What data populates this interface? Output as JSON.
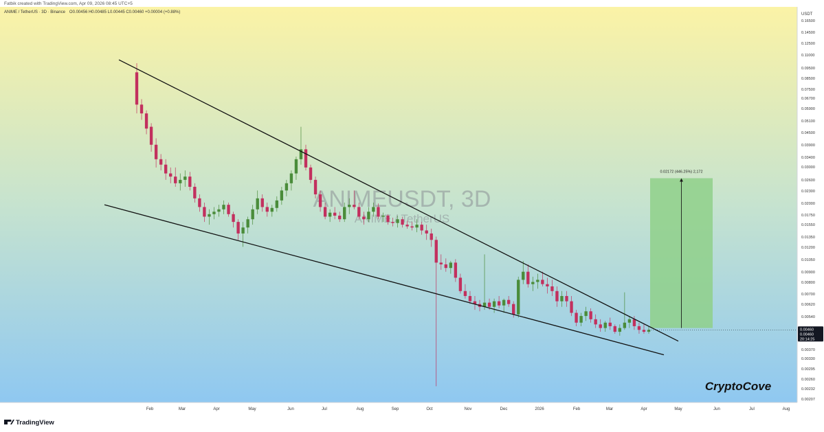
{
  "header": {
    "credit": "Fatbik created with TradingView.com, Apr 09, 2026 08:45 UTC+5",
    "symbol_line": "ANIME / TetherUS · 3D · Binance",
    "ohlc": "O0.00456 H0.00485 L0.00445 C0.00460 +0.00004 (+0.88%)"
  },
  "watermark": {
    "symbol": "ANIMEUSDT, 3D",
    "pair": "ANIME / TetherUS"
  },
  "footer": {
    "brand": "TradingView",
    "signature": "CryptoCove"
  },
  "colors": {
    "bg_top": "#fbf3a6",
    "bg_bottom": "#8fc8f1",
    "up": "#4a8c3a",
    "down": "#c2305e",
    "trendline": "#111111",
    "target_box": "#8fd08a",
    "price_tag": "#131722"
  },
  "chart_data": {
    "type": "candlestick",
    "title": "ANIMEUSDT, 3D",
    "y_scale": "log",
    "y_unit": "USDT",
    "y_ticks": [
      "0.16500",
      "0.14500",
      "0.12500",
      "0.11000",
      "0.09500",
      "0.08500",
      "0.07500",
      "0.06700",
      "0.05900",
      "0.05100",
      "0.04500",
      "0.03900",
      "0.03400",
      "0.03000",
      "0.02600",
      "0.02300",
      "0.02000",
      "0.01750",
      "0.01550",
      "0.01350",
      "0.01200",
      "0.01050",
      "0.00900",
      "0.00800",
      "0.00700",
      "0.00620",
      "0.00540",
      "0.00460",
      "0.00420",
      "0.00370",
      "0.00330",
      "0.00295",
      "0.00260",
      "0.00232",
      "0.00207"
    ],
    "y_tick_positions": [
      30,
      47,
      63,
      80,
      99,
      114,
      130,
      143,
      158,
      176,
      193,
      211,
      229,
      243,
      262,
      278,
      296,
      313,
      327,
      345,
      360,
      378,
      396,
      411,
      428,
      443,
      461,
      478,
      493,
      509,
      522,
      537,
      552,
      566,
      581
    ],
    "x_labels": [
      "Feb",
      "Mar",
      "Apr",
      "May",
      "Jun",
      "Jul",
      "Aug",
      "Sep",
      "Oct",
      "Nov",
      "Dec",
      "2026",
      "Feb",
      "Mar",
      "Apr",
      "May",
      "Jun",
      "Jul",
      "Aug"
    ],
    "x_label_positions": [
      218,
      265,
      315,
      367,
      423,
      472,
      524,
      575,
      625,
      681,
      733,
      785,
      839,
      887,
      937,
      987,
      1043,
      1094,
      1144
    ],
    "current_price": "0.00460",
    "current_price_secondary": "0.00460",
    "countdown": "20:14:25",
    "projection_label": "0.02172 (446.25%) 2,172",
    "projection": {
      "from_price": 0.0047,
      "to_price": 0.0265,
      "x_start": 946,
      "x_end": 1037
    },
    "candles": [
      [
        0.09,
        0.1,
        0.056,
        0.062
      ],
      [
        0.062,
        0.066,
        0.052,
        0.056
      ],
      [
        0.056,
        0.058,
        0.044,
        0.047
      ],
      [
        0.048,
        0.05,
        0.036,
        0.039
      ],
      [
        0.039,
        0.042,
        0.03,
        0.033
      ],
      [
        0.033,
        0.035,
        0.029,
        0.031
      ],
      [
        0.031,
        0.033,
        0.026,
        0.028
      ],
      [
        0.028,
        0.03,
        0.025,
        0.027
      ],
      [
        0.027,
        0.03,
        0.024,
        0.025
      ],
      [
        0.025,
        0.028,
        0.023,
        0.026
      ],
      [
        0.026,
        0.029,
        0.024,
        0.027
      ],
      [
        0.027,
        0.0285,
        0.023,
        0.024
      ],
      [
        0.024,
        0.025,
        0.02,
        0.021
      ],
      [
        0.021,
        0.022,
        0.018,
        0.019
      ],
      [
        0.019,
        0.02,
        0.016,
        0.017
      ],
      [
        0.017,
        0.0185,
        0.0155,
        0.0175
      ],
      [
        0.0175,
        0.019,
        0.0165,
        0.018
      ],
      [
        0.018,
        0.0195,
        0.017,
        0.0185
      ],
      [
        0.0185,
        0.0205,
        0.0175,
        0.0195
      ],
      [
        0.0195,
        0.02,
        0.017,
        0.0175
      ],
      [
        0.0175,
        0.018,
        0.015,
        0.016
      ],
      [
        0.016,
        0.0165,
        0.013,
        0.014
      ],
      [
        0.014,
        0.016,
        0.012,
        0.015
      ],
      [
        0.015,
        0.017,
        0.014,
        0.0165
      ],
      [
        0.0165,
        0.0195,
        0.0155,
        0.0185
      ],
      [
        0.0185,
        0.023,
        0.0175,
        0.021
      ],
      [
        0.021,
        0.022,
        0.018,
        0.019
      ],
      [
        0.019,
        0.02,
        0.017,
        0.018
      ],
      [
        0.018,
        0.0195,
        0.017,
        0.0188
      ],
      [
        0.0188,
        0.0215,
        0.018,
        0.0205
      ],
      [
        0.0205,
        0.024,
        0.0195,
        0.023
      ],
      [
        0.023,
        0.026,
        0.0215,
        0.025
      ],
      [
        0.025,
        0.029,
        0.023,
        0.028
      ],
      [
        0.028,
        0.034,
        0.026,
        0.033
      ],
      [
        0.033,
        0.048,
        0.031,
        0.037
      ],
      [
        0.037,
        0.039,
        0.029,
        0.03
      ],
      [
        0.03,
        0.031,
        0.025,
        0.026
      ],
      [
        0.026,
        0.027,
        0.021,
        0.022
      ],
      [
        0.022,
        0.023,
        0.018,
        0.019
      ],
      [
        0.019,
        0.02,
        0.0165,
        0.017
      ],
      [
        0.017,
        0.0185,
        0.016,
        0.0178
      ],
      [
        0.0178,
        0.019,
        0.0165,
        0.0172
      ],
      [
        0.0172,
        0.018,
        0.016,
        0.0165
      ],
      [
        0.0165,
        0.02,
        0.016,
        0.019
      ],
      [
        0.019,
        0.021,
        0.0175,
        0.0195
      ],
      [
        0.0195,
        0.023,
        0.0185,
        0.019
      ],
      [
        0.019,
        0.02,
        0.0165,
        0.017
      ],
      [
        0.017,
        0.018,
        0.0155,
        0.0165
      ],
      [
        0.0165,
        0.019,
        0.016,
        0.018
      ],
      [
        0.018,
        0.02,
        0.017,
        0.019
      ],
      [
        0.019,
        0.0198,
        0.0165,
        0.017
      ],
      [
        0.017,
        0.0178,
        0.016,
        0.0172
      ],
      [
        0.0172,
        0.0175,
        0.0155,
        0.016
      ],
      [
        0.016,
        0.0168,
        0.0152,
        0.0158
      ],
      [
        0.0158,
        0.0172,
        0.015,
        0.0165
      ],
      [
        0.0165,
        0.017,
        0.015,
        0.0155
      ],
      [
        0.0155,
        0.0162,
        0.0148,
        0.0152
      ],
      [
        0.0152,
        0.016,
        0.0145,
        0.015
      ],
      [
        0.015,
        0.0165,
        0.0142,
        0.0155
      ],
      [
        0.0155,
        0.016,
        0.0138,
        0.0145
      ],
      [
        0.0145,
        0.0155,
        0.013,
        0.014
      ],
      [
        0.014,
        0.0148,
        0.012,
        0.013
      ],
      [
        0.013,
        0.0135,
        0.0024,
        0.01
      ],
      [
        0.01,
        0.011,
        0.0092,
        0.0098
      ],
      [
        0.0098,
        0.0105,
        0.009,
        0.0094
      ],
      [
        0.0094,
        0.0102,
        0.0088,
        0.01
      ],
      [
        0.01,
        0.0104,
        0.008,
        0.0084
      ],
      [
        0.0084,
        0.0088,
        0.007,
        0.0072
      ],
      [
        0.0072,
        0.0078,
        0.0066,
        0.0068
      ],
      [
        0.0068,
        0.0072,
        0.0062,
        0.0064
      ],
      [
        0.0064,
        0.0068,
        0.0058,
        0.0062
      ],
      [
        0.0062,
        0.0065,
        0.0057,
        0.006
      ],
      [
        0.006,
        0.011,
        0.0058,
        0.0063
      ],
      [
        0.0063,
        0.0066,
        0.0058,
        0.006
      ],
      [
        0.006,
        0.0066,
        0.0056,
        0.0064
      ],
      [
        0.0064,
        0.0068,
        0.0059,
        0.0061
      ],
      [
        0.0061,
        0.0066,
        0.0056,
        0.0065
      ],
      [
        0.0065,
        0.0068,
        0.006,
        0.0062
      ],
      [
        0.0062,
        0.0064,
        0.0053,
        0.0055
      ],
      [
        0.0055,
        0.0085,
        0.0053,
        0.0082
      ],
      [
        0.0082,
        0.0102,
        0.0078,
        0.009
      ],
      [
        0.009,
        0.0098,
        0.0075,
        0.0078
      ],
      [
        0.0078,
        0.0085,
        0.0072,
        0.008
      ],
      [
        0.008,
        0.0088,
        0.0074,
        0.0082
      ],
      [
        0.0082,
        0.009,
        0.0076,
        0.0078
      ],
      [
        0.0078,
        0.0084,
        0.007,
        0.0076
      ],
      [
        0.0076,
        0.0082,
        0.0068,
        0.0072
      ],
      [
        0.0072,
        0.0076,
        0.006,
        0.0064
      ],
      [
        0.0064,
        0.0072,
        0.006,
        0.0068
      ],
      [
        0.0068,
        0.0072,
        0.006,
        0.0064
      ],
      [
        0.0064,
        0.0068,
        0.0054,
        0.0056
      ],
      [
        0.0056,
        0.0058,
        0.0048,
        0.005
      ],
      [
        0.005,
        0.0056,
        0.0048,
        0.0054
      ],
      [
        0.0054,
        0.006,
        0.0051,
        0.0057
      ],
      [
        0.0057,
        0.0059,
        0.005,
        0.0052
      ],
      [
        0.0052,
        0.0055,
        0.0047,
        0.0049
      ],
      [
        0.0049,
        0.0052,
        0.0045,
        0.0047
      ],
      [
        0.0047,
        0.0051,
        0.0045,
        0.005
      ],
      [
        0.005,
        0.0053,
        0.0046,
        0.0048
      ],
      [
        0.0048,
        0.0049,
        0.0044,
        0.0045
      ],
      [
        0.0045,
        0.0049,
        0.0043,
        0.0047
      ],
      [
        0.0047,
        0.0071,
        0.0046,
        0.005
      ],
      [
        0.005,
        0.0054,
        0.0047,
        0.0052
      ],
      [
        0.0052,
        0.0054,
        0.0046,
        0.0048
      ],
      [
        0.0048,
        0.005,
        0.0044,
        0.0046
      ],
      [
        0.0046,
        0.0049,
        0.0044,
        0.0045
      ],
      [
        0.0045,
        0.0048,
        0.0044,
        0.0046
      ]
    ],
    "trendlines": [
      {
        "name": "upper",
        "x1": 173,
        "p1": 0.104,
        "x2": 987,
        "p2": 0.00404
      },
      {
        "name": "lower",
        "x1": 152,
        "p1": 0.0195,
        "x2": 966,
        "p2": 0.00345
      }
    ]
  }
}
